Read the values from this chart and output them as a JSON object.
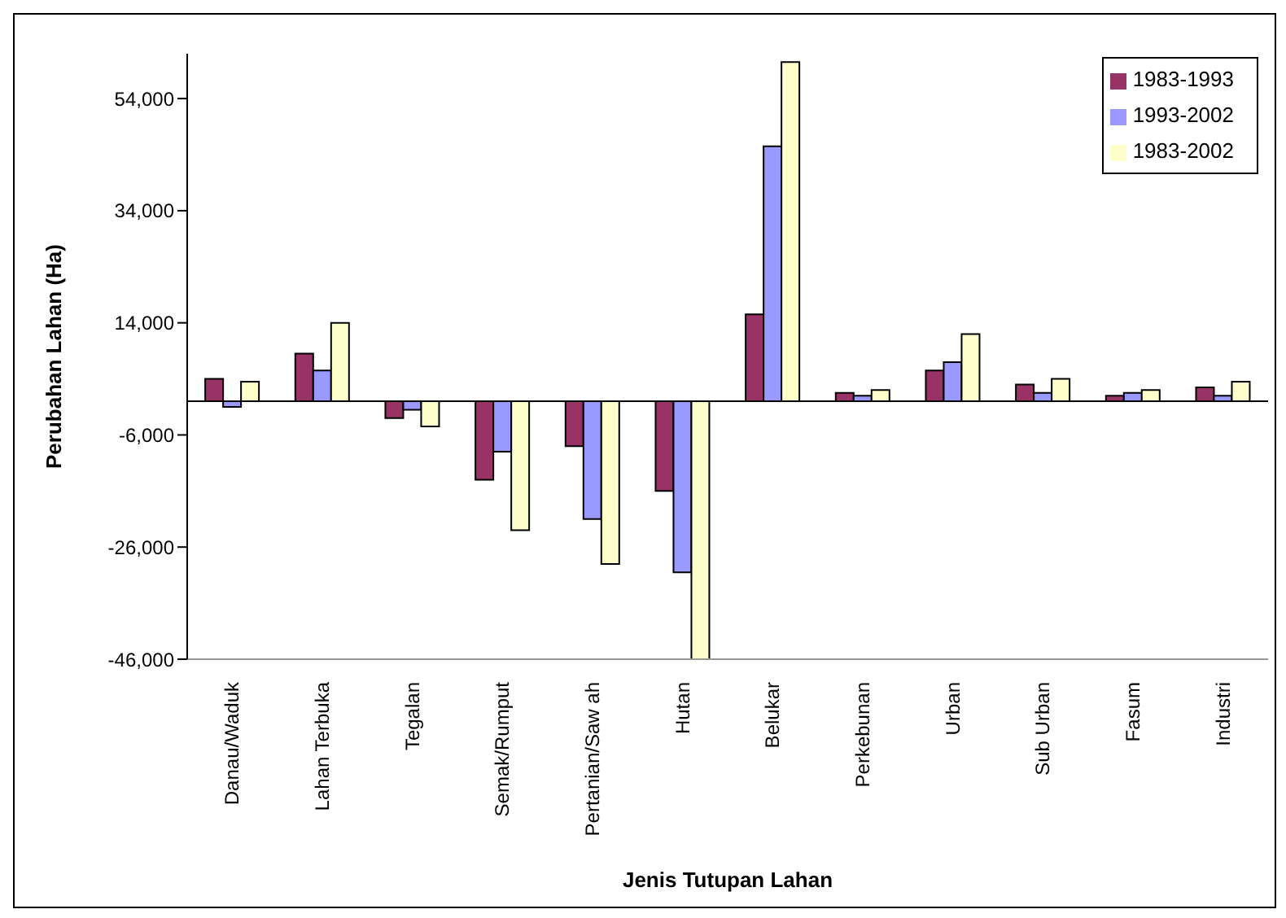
{
  "chart_data": {
    "type": "bar",
    "xlabel": "Jenis Tutupan Lahan",
    "ylabel": "Perubahan Lahan (Ha)",
    "categories": [
      "Danau/Waduk",
      "Lahan Terbuka",
      "Tegalan",
      "Semak/Rumput",
      "Pertanian/Saw ah",
      "Hutan",
      "Belukar",
      "Perkebunan",
      "Urban",
      "Sub Urban",
      "Fasum",
      "Industri"
    ],
    "series": [
      {
        "name": "1983-1993",
        "color": "#993366",
        "values": [
          4000,
          8500,
          -3000,
          -14000,
          -8000,
          -16000,
          15500,
          1500,
          5500,
          3000,
          1000,
          2500
        ]
      },
      {
        "name": "1993-2002",
        "color": "#9999ff",
        "values": [
          -1000,
          5500,
          -1500,
          -9000,
          -21000,
          -30500,
          45500,
          1000,
          7000,
          1500,
          1500,
          1000
        ]
      },
      {
        "name": "1983-2002",
        "color": "#ffffcc",
        "values": [
          3500,
          14000,
          -4500,
          -23000,
          -29000,
          -46000,
          60500,
          2000,
          12000,
          4000,
          2000,
          3500
        ]
      }
    ],
    "ylim": [
      -46000,
      62000
    ],
    "yticks": [
      {
        "value": -46000,
        "label": "-46,000"
      },
      {
        "value": -26000,
        "label": "-26,000"
      },
      {
        "value": -6000,
        "label": "-6,000"
      },
      {
        "value": 14000,
        "label": "14,000"
      },
      {
        "value": 34000,
        "label": "34,000"
      },
      {
        "value": 54000,
        "label": "54,000"
      }
    ],
    "grid": false,
    "legend": "top right"
  }
}
